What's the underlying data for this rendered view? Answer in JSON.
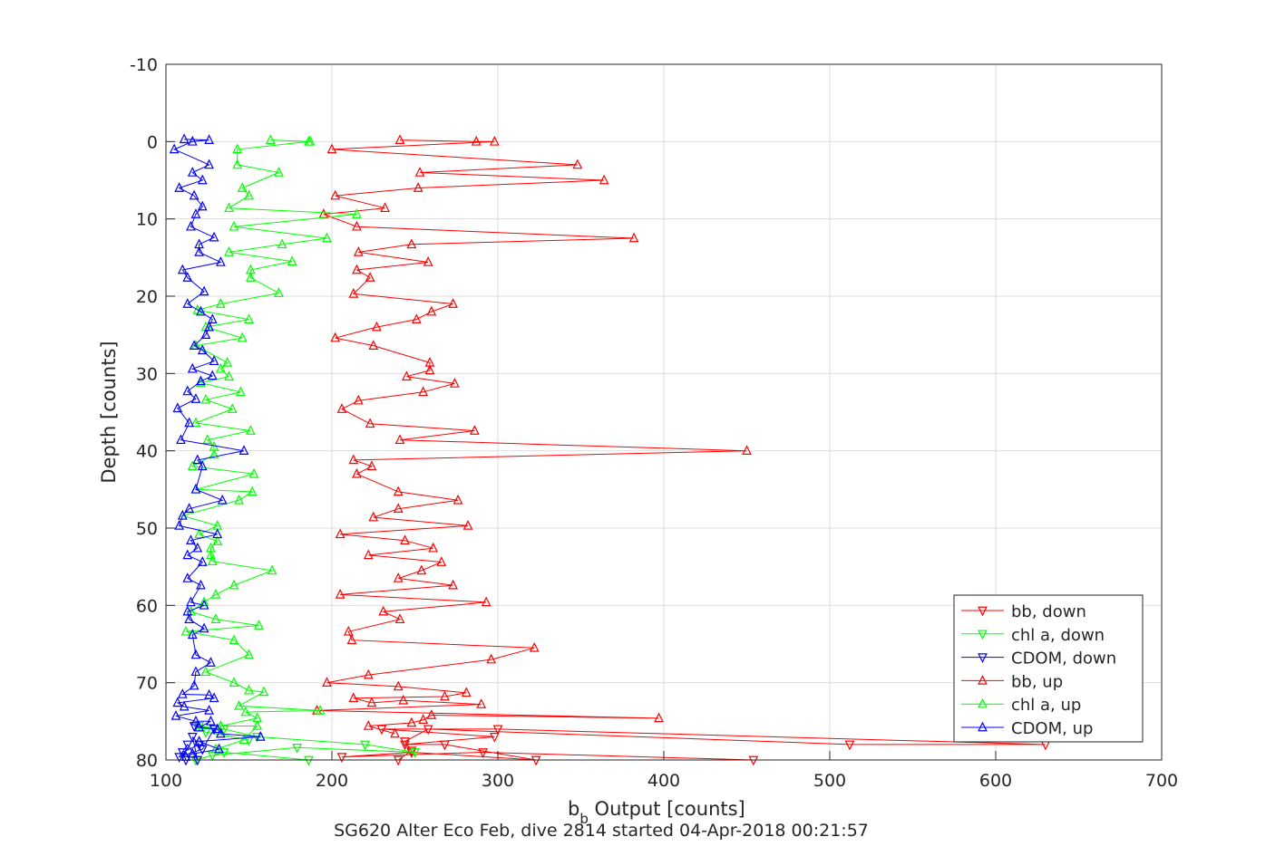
{
  "chart_data": {
    "type": "scatter",
    "title": "",
    "xlabel_main": "b",
    "xlabel_sub": "b",
    "xlabel_rest": " Output [counts]",
    "ylabel": "Depth [counts]",
    "footer": "SG620 Alter Eco Feb, dive 2814 started 04-Apr-2018 00:21:57",
    "xlim": [
      100,
      700
    ],
    "ylim": [
      -10,
      80
    ],
    "y_reversed": true,
    "grid": true,
    "xticks": [
      100,
      200,
      300,
      400,
      500,
      600,
      700
    ],
    "yticks": [
      -10,
      0,
      10,
      20,
      30,
      40,
      50,
      60,
      70,
      80
    ],
    "xtick_labels": [
      "100",
      "200",
      "300",
      "400",
      "500",
      "600",
      "700"
    ],
    "ytick_labels": [
      "-10",
      "0",
      "10",
      "20",
      "30",
      "40",
      "50",
      "60",
      "70",
      "80"
    ],
    "legend_position": "bottom-right",
    "series": [
      {
        "name": "bb, down",
        "color": "#ff0000",
        "marker": "triangle-down",
        "points": [
          [
            454,
            80
          ],
          [
            291,
            79
          ],
          [
            206,
            79.6
          ],
          [
            248,
            79
          ],
          [
            323,
            80
          ],
          [
            268,
            78
          ],
          [
            244,
            78
          ],
          [
            298,
            77
          ],
          [
            230,
            76
          ],
          [
            300,
            76
          ],
          [
            630,
            78
          ],
          [
            512,
            78
          ],
          [
            258,
            76
          ],
          [
            244,
            77.6
          ],
          [
            248,
            78.8
          ],
          [
            240,
            80
          ]
        ]
      },
      {
        "name": "chl a, down",
        "color": "#00ff00",
        "marker": "triangle-down",
        "points": [
          [
            186,
            80
          ],
          [
            135,
            79
          ],
          [
            118,
            80
          ],
          [
            128,
            79.4
          ],
          [
            179,
            78.4
          ],
          [
            250,
            79
          ],
          [
            220,
            78
          ],
          [
            155,
            77
          ],
          [
            135,
            76
          ],
          [
            120,
            75.6
          ],
          [
            124,
            76.4
          ],
          [
            150,
            77.4
          ]
        ]
      },
      {
        "name": "CDOM, down",
        "color": "#0000ff",
        "marker": "triangle-down",
        "points": [
          [
            112,
            80
          ],
          [
            110,
            79
          ],
          [
            120,
            78
          ],
          [
            116,
            77
          ],
          [
            119,
            80
          ],
          [
            113,
            78
          ],
          [
            108,
            79.6
          ],
          [
            122,
            78.6
          ],
          [
            129,
            76
          ],
          [
            117,
            75.6
          ]
        ]
      },
      {
        "name": "bb, up",
        "color": "#ff0000",
        "marker": "triangle-up",
        "points": [
          [
            241,
            -0.2
          ],
          [
            287,
            0
          ],
          [
            298,
            0
          ],
          [
            200,
            1
          ],
          [
            348,
            3
          ],
          [
            253,
            4
          ],
          [
            364,
            5
          ],
          [
            252,
            6
          ],
          [
            202,
            7
          ],
          [
            232,
            8.6
          ],
          [
            195,
            9.4
          ],
          [
            215,
            11
          ],
          [
            382,
            12.5
          ],
          [
            248,
            13.3
          ],
          [
            216,
            14.3
          ],
          [
            258,
            15.6
          ],
          [
            215,
            16.6
          ],
          [
            223,
            17.6
          ],
          [
            213,
            19.7
          ],
          [
            273,
            21
          ],
          [
            260,
            22
          ],
          [
            251,
            23
          ],
          [
            227,
            24
          ],
          [
            202,
            25.4
          ],
          [
            225,
            26.4
          ],
          [
            259,
            28.6
          ],
          [
            259,
            29.6
          ],
          [
            245,
            30.4
          ],
          [
            274,
            31.3
          ],
          [
            255,
            32.4
          ],
          [
            216,
            33.5
          ],
          [
            206,
            34.6
          ],
          [
            223,
            36.5
          ],
          [
            286,
            37.4
          ],
          [
            241,
            38.6
          ],
          [
            450,
            40
          ],
          [
            213,
            41.2
          ],
          [
            224,
            42
          ],
          [
            215,
            43
          ],
          [
            240,
            45.3
          ],
          [
            276,
            46.4
          ],
          [
            240,
            47.5
          ],
          [
            225,
            48.6
          ],
          [
            282,
            49.7
          ],
          [
            205,
            50.8
          ],
          [
            244,
            51.6
          ],
          [
            261,
            52.6
          ],
          [
            222,
            53.5
          ],
          [
            266,
            54.4
          ],
          [
            254,
            55.5
          ],
          [
            240,
            56.5
          ],
          [
            273,
            57.4
          ],
          [
            205,
            58.6
          ],
          [
            293,
            59.6
          ],
          [
            231,
            60.8
          ],
          [
            241,
            61.8
          ],
          [
            210,
            63.4
          ],
          [
            212,
            64.5
          ],
          [
            322,
            65.5
          ],
          [
            296,
            67
          ],
          [
            222,
            69
          ],
          [
            197,
            70
          ],
          [
            240,
            70.5
          ],
          [
            281,
            71.3
          ],
          [
            268,
            71.8
          ],
          [
            213,
            72
          ],
          [
            224,
            72.6
          ],
          [
            243,
            72.3
          ],
          [
            290,
            72.8
          ],
          [
            191,
            73.6
          ],
          [
            397,
            74.6
          ],
          [
            260,
            74.2
          ],
          [
            255,
            74.8
          ],
          [
            248,
            75.2
          ],
          [
            222,
            75.6
          ],
          [
            238,
            76.6
          ]
        ]
      },
      {
        "name": "chl a, up",
        "color": "#00ff00",
        "marker": "triangle-up",
        "points": [
          [
            163,
            -0.2
          ],
          [
            187,
            0
          ],
          [
            186,
            0
          ],
          [
            143,
            1
          ],
          [
            143,
            3
          ],
          [
            168,
            4
          ],
          [
            146,
            6
          ],
          [
            150,
            7
          ],
          [
            138,
            8.6
          ],
          [
            215,
            9.4
          ],
          [
            141,
            11
          ],
          [
            197,
            12.5
          ],
          [
            170,
            13.3
          ],
          [
            138,
            14.3
          ],
          [
            176,
            15.5
          ],
          [
            151,
            16.6
          ],
          [
            151,
            17.6
          ],
          [
            168,
            19.6
          ],
          [
            133,
            21
          ],
          [
            119,
            21.8
          ],
          [
            150,
            23
          ],
          [
            124,
            24
          ],
          [
            146,
            25.4
          ],
          [
            118,
            26.4
          ],
          [
            137,
            28.6
          ],
          [
            133,
            29.4
          ],
          [
            138,
            30.4
          ],
          [
            121,
            31.2
          ],
          [
            145,
            32.4
          ],
          [
            124,
            33.4
          ],
          [
            140,
            34.6
          ],
          [
            118,
            36.4
          ],
          [
            151,
            37.4
          ],
          [
            125,
            38.6
          ],
          [
            129,
            39.5
          ],
          [
            129,
            40.5
          ],
          [
            116,
            42
          ],
          [
            153,
            43
          ],
          [
            118,
            45
          ],
          [
            152,
            45.3
          ],
          [
            144,
            46.4
          ],
          [
            110,
            48.4
          ],
          [
            131,
            49.7
          ],
          [
            120,
            50.8
          ],
          [
            131,
            51.7
          ],
          [
            127,
            52.6
          ],
          [
            127,
            53.5
          ],
          [
            128,
            54.3
          ],
          [
            164,
            55.5
          ],
          [
            141,
            57.4
          ],
          [
            130,
            58.6
          ],
          [
            123,
            59.6
          ],
          [
            115,
            60.8
          ],
          [
            130,
            61.8
          ],
          [
            156,
            62.6
          ],
          [
            112,
            63.4
          ],
          [
            141,
            64.5
          ],
          [
            150,
            66.4
          ],
          [
            124,
            68.6
          ],
          [
            141,
            70
          ],
          [
            150,
            71
          ],
          [
            159,
            71.2
          ],
          [
            144,
            73
          ],
          [
            193,
            73.6
          ],
          [
            148,
            73.8
          ],
          [
            155,
            74.6
          ],
          [
            133,
            75.6
          ],
          [
            155,
            75.6
          ],
          [
            147,
            77.4
          ],
          [
            130,
            78.6
          ]
        ]
      },
      {
        "name": "CDOM, up",
        "color": "#0000ff",
        "marker": "triangle-up",
        "points": [
          [
            111,
            -0.3
          ],
          [
            126,
            -0.2
          ],
          [
            116,
            0
          ],
          [
            105,
            1
          ],
          [
            126,
            3
          ],
          [
            116,
            4
          ],
          [
            122,
            5
          ],
          [
            108,
            6
          ],
          [
            117,
            7
          ],
          [
            122,
            8.4
          ],
          [
            118,
            9.4
          ],
          [
            115,
            11
          ],
          [
            129,
            12.4
          ],
          [
            120,
            13.3
          ],
          [
            120,
            14.3
          ],
          [
            133,
            15.6
          ],
          [
            110,
            16.6
          ],
          [
            113,
            17.6
          ],
          [
            123,
            19.4
          ],
          [
            113,
            21
          ],
          [
            121,
            22
          ],
          [
            128,
            23
          ],
          [
            126,
            24
          ],
          [
            124,
            25
          ],
          [
            117,
            26.4
          ],
          [
            122,
            27
          ],
          [
            129,
            28.4
          ],
          [
            116,
            29.4
          ],
          [
            128,
            30.3
          ],
          [
            121,
            31
          ],
          [
            113,
            32.3
          ],
          [
            118,
            33.3
          ],
          [
            107,
            34.5
          ],
          [
            114,
            36.4
          ],
          [
            109,
            38.6
          ],
          [
            147,
            40
          ],
          [
            119,
            41.2
          ],
          [
            122,
            42
          ],
          [
            118,
            45
          ],
          [
            134,
            46.4
          ],
          [
            114,
            47.5
          ],
          [
            110,
            48.4
          ],
          [
            108,
            49.7
          ],
          [
            131,
            50.8
          ],
          [
            115,
            51.6
          ],
          [
            119,
            52.6
          ],
          [
            113,
            53.5
          ],
          [
            122,
            54.4
          ],
          [
            113,
            56.5
          ],
          [
            121,
            57.4
          ],
          [
            115,
            59.6
          ],
          [
            123,
            60
          ],
          [
            113,
            60.8
          ],
          [
            114,
            61.8
          ],
          [
            123,
            63
          ],
          [
            116,
            63.8
          ],
          [
            118,
            66.4
          ],
          [
            127,
            67.4
          ],
          [
            118,
            68.6
          ],
          [
            117,
            70.4
          ],
          [
            110,
            71.5
          ],
          [
            126,
            71.6
          ],
          [
            129,
            72
          ],
          [
            107,
            72.6
          ],
          [
            111,
            73.1
          ],
          [
            126,
            73.6
          ],
          [
            106,
            74.3
          ],
          [
            118,
            75
          ],
          [
            127,
            75
          ],
          [
            120,
            75.8
          ],
          [
            131,
            76
          ],
          [
            133,
            76.6
          ],
          [
            157,
            77
          ],
          [
            120,
            77.6
          ],
          [
            132,
            78.6
          ],
          [
            116,
            79.2
          ],
          [
            112,
            79.6
          ]
        ]
      }
    ]
  }
}
